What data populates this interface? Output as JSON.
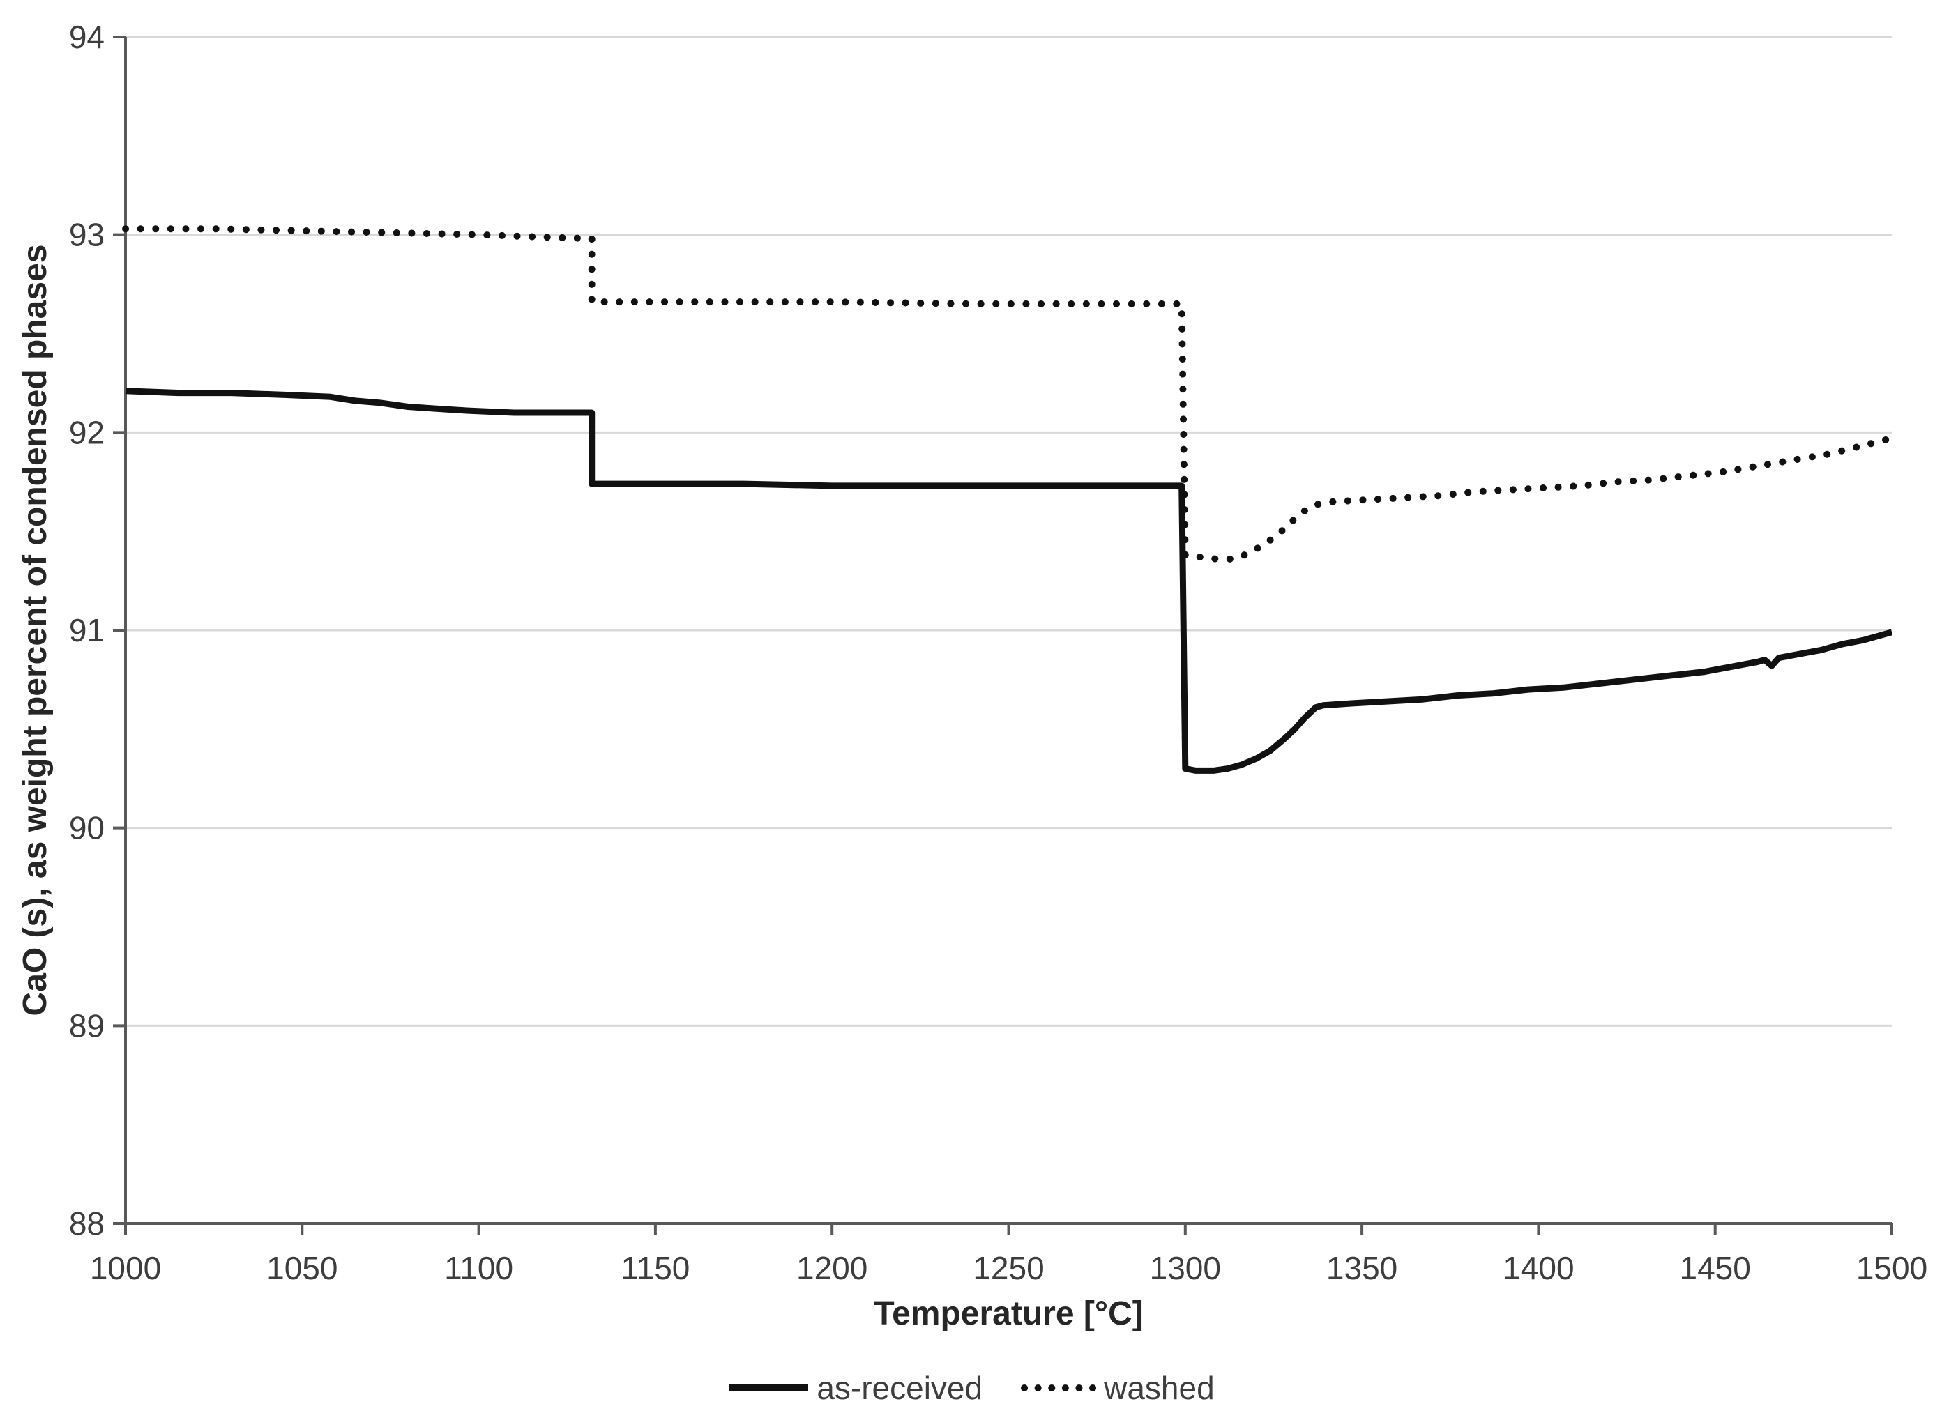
{
  "chart_data": {
    "type": "line",
    "title": "",
    "xlabel": "Temperature [°C]",
    "ylabel": "CaO (s), as weight percent of condensed phases",
    "xlim": [
      1000,
      1500
    ],
    "ylim": [
      88,
      94
    ],
    "x_ticks": [
      1000,
      1050,
      1100,
      1150,
      1200,
      1250,
      1300,
      1350,
      1400,
      1450,
      1500
    ],
    "y_ticks": [
      88,
      89,
      90,
      91,
      92,
      93,
      94
    ],
    "grid": "horizontal",
    "legend_position": "bottom",
    "series": [
      {
        "name": "as-received",
        "style": "solid",
        "color": "#111111",
        "points": [
          [
            1000,
            92.21
          ],
          [
            1015,
            92.2
          ],
          [
            1030,
            92.2
          ],
          [
            1045,
            92.19
          ],
          [
            1058,
            92.18
          ],
          [
            1065,
            92.16
          ],
          [
            1072,
            92.15
          ],
          [
            1080,
            92.13
          ],
          [
            1088,
            92.12
          ],
          [
            1097,
            92.11
          ],
          [
            1110,
            92.1
          ],
          [
            1125,
            92.1
          ],
          [
            1132,
            92.1
          ],
          [
            1132,
            91.74
          ],
          [
            1150,
            91.74
          ],
          [
            1175,
            91.74
          ],
          [
            1200,
            91.73
          ],
          [
            1240,
            91.73
          ],
          [
            1275,
            91.73
          ],
          [
            1299,
            91.73
          ],
          [
            1300,
            90.3
          ],
          [
            1303,
            90.29
          ],
          [
            1308,
            90.29
          ],
          [
            1312,
            90.3
          ],
          [
            1316,
            90.32
          ],
          [
            1320,
            90.35
          ],
          [
            1324,
            90.39
          ],
          [
            1328,
            90.45
          ],
          [
            1331,
            90.5
          ],
          [
            1334,
            90.56
          ],
          [
            1337,
            90.61
          ],
          [
            1339,
            90.62
          ],
          [
            1347,
            90.63
          ],
          [
            1357,
            90.64
          ],
          [
            1367,
            90.65
          ],
          [
            1377,
            90.67
          ],
          [
            1387,
            90.68
          ],
          [
            1397,
            90.7
          ],
          [
            1407,
            90.71
          ],
          [
            1417,
            90.73
          ],
          [
            1427,
            90.75
          ],
          [
            1437,
            90.77
          ],
          [
            1447,
            90.79
          ],
          [
            1456,
            90.82
          ],
          [
            1462,
            90.84
          ],
          [
            1464,
            90.85
          ],
          [
            1466,
            90.82
          ],
          [
            1468,
            90.86
          ],
          [
            1474,
            90.88
          ],
          [
            1480,
            90.9
          ],
          [
            1486,
            90.93
          ],
          [
            1492,
            90.95
          ],
          [
            1500,
            90.99
          ]
        ]
      },
      {
        "name": "washed",
        "style": "dotted",
        "color": "#111111",
        "points": [
          [
            1000,
            93.03
          ],
          [
            1025,
            93.03
          ],
          [
            1050,
            93.02
          ],
          [
            1075,
            93.01
          ],
          [
            1100,
            93.0
          ],
          [
            1115,
            92.99
          ],
          [
            1132,
            92.98
          ],
          [
            1132,
            92.66
          ],
          [
            1160,
            92.66
          ],
          [
            1200,
            92.66
          ],
          [
            1240,
            92.65
          ],
          [
            1280,
            92.65
          ],
          [
            1299,
            92.65
          ],
          [
            1300,
            91.38
          ],
          [
            1304,
            91.37
          ],
          [
            1309,
            91.36
          ],
          [
            1314,
            91.36
          ],
          [
            1318,
            91.39
          ],
          [
            1322,
            91.43
          ],
          [
            1326,
            91.48
          ],
          [
            1329,
            91.53
          ],
          [
            1332,
            91.58
          ],
          [
            1335,
            91.62
          ],
          [
            1338,
            91.64
          ],
          [
            1342,
            91.65
          ],
          [
            1352,
            91.66
          ],
          [
            1362,
            91.67
          ],
          [
            1372,
            91.68
          ],
          [
            1382,
            91.7
          ],
          [
            1392,
            91.71
          ],
          [
            1402,
            91.72
          ],
          [
            1412,
            91.73
          ],
          [
            1422,
            91.75
          ],
          [
            1432,
            91.76
          ],
          [
            1442,
            91.78
          ],
          [
            1452,
            91.8
          ],
          [
            1462,
            91.83
          ],
          [
            1472,
            91.86
          ],
          [
            1482,
            91.89
          ],
          [
            1491,
            91.93
          ],
          [
            1500,
            91.97
          ]
        ]
      }
    ]
  },
  "colors": {
    "background": "#ffffff",
    "gridline": "#d9d9d9",
    "axis": "#595959",
    "tick_text": "#3d3d3d",
    "title_text": "#262626",
    "line": "#111111"
  }
}
